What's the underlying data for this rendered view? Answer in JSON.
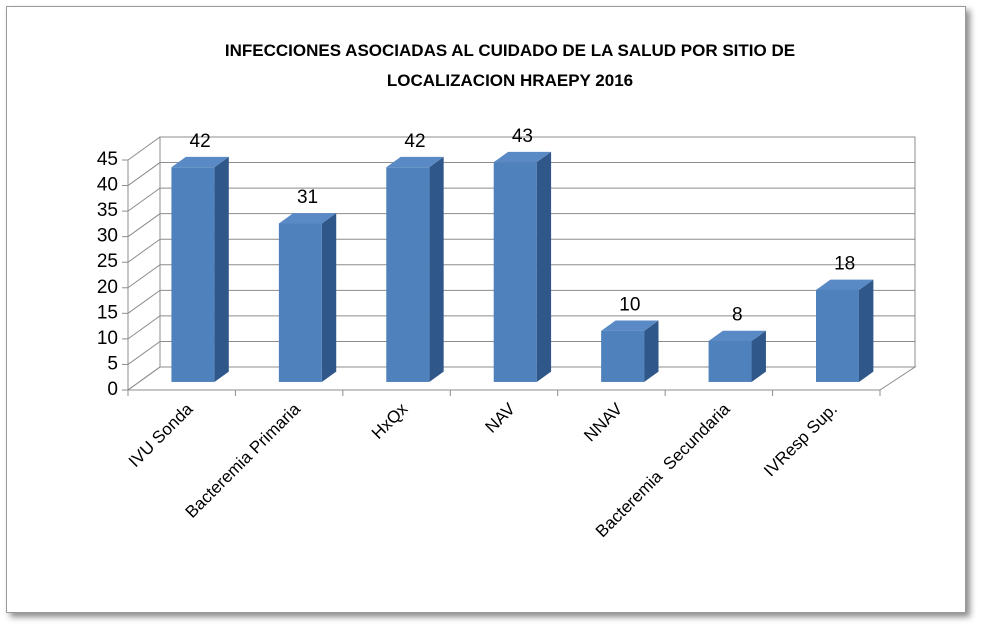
{
  "chart_data": {
    "type": "bar3d",
    "title": "INFECCIONES ASOCIADAS AL CUIDADO DE LA SALUD POR SITIO DE LOCALIZACION HRAEPY 2016",
    "categories": [
      "IVU Sonda",
      "Bacteremia Primaria",
      "HxQx",
      "NAV",
      "NNAV",
      "Bacteremia  Secundaria",
      "IVResp Sup."
    ],
    "values": [
      42,
      31,
      42,
      43,
      10,
      8,
      18
    ],
    "color": "#4f81bd",
    "ylim": [
      0,
      45
    ],
    "yticks": [
      0,
      5,
      10,
      15,
      20,
      25,
      30,
      35,
      40,
      45
    ],
    "grid": true
  }
}
